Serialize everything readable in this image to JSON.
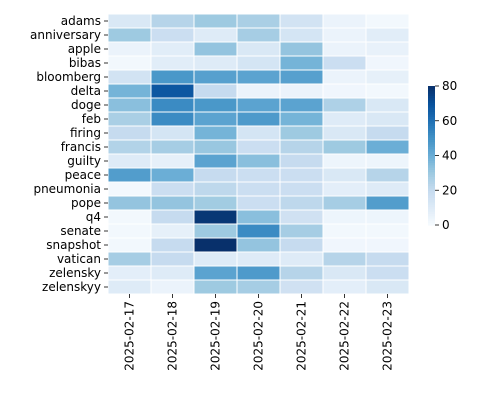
{
  "chart_data": {
    "type": "heatmap",
    "rows": [
      "adams",
      "anniversary",
      "apple",
      "bibas",
      "bloomberg",
      "delta",
      "doge",
      "feb",
      "firing",
      "francis",
      "guilty",
      "peace",
      "pneumonia",
      "pope",
      "q4",
      "senate",
      "snapshot",
      "vatican",
      "zelensky",
      "zelenskyy"
    ],
    "columns": [
      "2025-02-17",
      "2025-02-18",
      "2025-02-19",
      "2025-02-20",
      "2025-02-21",
      "2025-02-22",
      "2025-02-23"
    ],
    "values": [
      [
        12,
        24,
        30,
        27,
        15,
        5,
        2
      ],
      [
        30,
        18,
        10,
        28,
        14,
        5,
        9
      ],
      [
        5,
        9,
        32,
        12,
        32,
        5,
        6
      ],
      [
        2,
        9,
        10,
        14,
        38,
        18,
        3
      ],
      [
        15,
        48,
        45,
        44,
        45,
        5,
        7
      ],
      [
        38,
        68,
        20,
        5,
        5,
        3,
        2
      ],
      [
        34,
        52,
        48,
        44,
        44,
        26,
        12
      ],
      [
        27,
        52,
        44,
        47,
        38,
        10,
        12
      ],
      [
        20,
        14,
        38,
        14,
        30,
        12,
        20
      ],
      [
        25,
        28,
        31,
        18,
        24,
        30,
        40
      ],
      [
        10,
        7,
        44,
        34,
        20,
        4,
        4
      ],
      [
        46,
        40,
        20,
        18,
        18,
        12,
        24
      ],
      [
        2,
        18,
        22,
        18,
        18,
        8,
        10
      ],
      [
        32,
        32,
        29,
        18,
        22,
        28,
        46
      ],
      [
        2,
        20,
        78,
        34,
        16,
        4,
        4
      ],
      [
        2,
        7,
        30,
        52,
        28,
        2,
        2
      ],
      [
        2,
        20,
        80,
        32,
        20,
        3,
        3
      ],
      [
        28,
        20,
        10,
        10,
        10,
        24,
        20
      ],
      [
        8,
        10,
        44,
        47,
        24,
        12,
        18
      ],
      [
        10,
        5,
        30,
        28,
        16,
        8,
        12
      ]
    ],
    "colorbar": {
      "min": 0,
      "max": 80,
      "ticks": [
        0,
        20,
        40,
        60,
        80
      ]
    },
    "colormap": "Blues",
    "title": "",
    "xlabel": "",
    "ylabel": ""
  }
}
